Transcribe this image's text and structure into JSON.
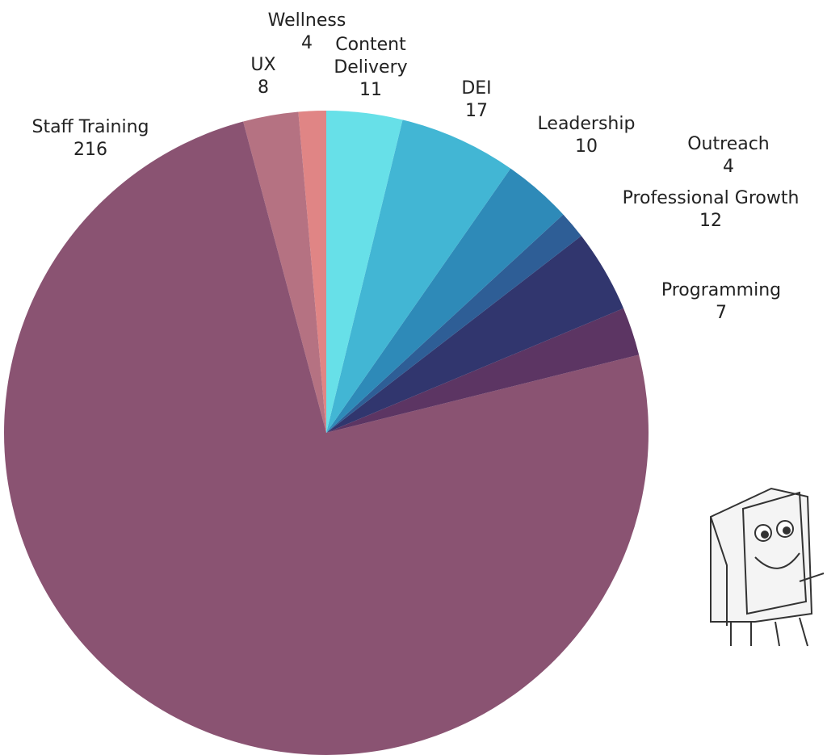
{
  "chart_data": {
    "type": "pie",
    "categories": [
      "Content Delivery",
      "DEI",
      "Leadership",
      "Outreach",
      "Professional Growth",
      "Programming",
      "Staff Training",
      "UX",
      "Wellness"
    ],
    "values": [
      11,
      17,
      10,
      4,
      12,
      7,
      216,
      8,
      4
    ],
    "colors": [
      "#67e0e8",
      "#42b6d4",
      "#2e8ab8",
      "#2e5e96",
      "#31366e",
      "#5c3563",
      "#8a5372",
      "#b57282",
      "#e08585"
    ]
  }
}
